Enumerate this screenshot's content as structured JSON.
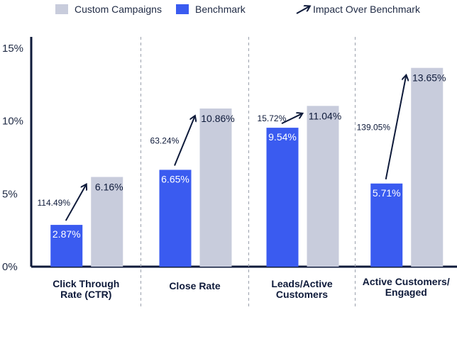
{
  "chart_data": {
    "type": "bar",
    "categories": [
      [
        "Click Through",
        "Rate (CTR)"
      ],
      [
        "Close Rate"
      ],
      [
        "Leads/Active",
        "Customers"
      ],
      [
        "Active Customers/",
        "Engaged"
      ]
    ],
    "series": [
      {
        "name": "Benchmark",
        "values": [
          2.87,
          6.65,
          9.54,
          5.71
        ],
        "labels": [
          "2.87%",
          "6.65%",
          "9.54%",
          "5.71%"
        ]
      },
      {
        "name": "Custom Campaigns",
        "values": [
          6.16,
          10.86,
          11.04,
          13.65
        ],
        "labels": [
          "6.16%",
          "10.86%",
          "11.04%",
          "13.65%"
        ]
      }
    ],
    "impact": {
      "name": "Impact Over Benchmark",
      "labels": [
        "114.49%",
        "63.24%",
        "15.72%",
        "139.05%"
      ]
    },
    "legend": [
      {
        "name": "Custom Campaigns",
        "kind": "box",
        "color": "#c8ccdc"
      },
      {
        "name": "Benchmark",
        "kind": "box",
        "color": "#3a5bf0"
      },
      {
        "name": "Impact Over Benchmark",
        "kind": "arrow",
        "color": "#0e1a3a"
      }
    ],
    "yticks": [
      "0%",
      "5%",
      "10%",
      "15%"
    ],
    "ytick_values": [
      0,
      5,
      10,
      15
    ],
    "ylim": [
      0,
      15
    ],
    "legend_position": "top",
    "grid": false,
    "colors": {
      "benchmark": "#3a5bf0",
      "custom": "#c8ccdc",
      "axis": "#0e1a3a",
      "divider": "#9aa0ac"
    }
  }
}
